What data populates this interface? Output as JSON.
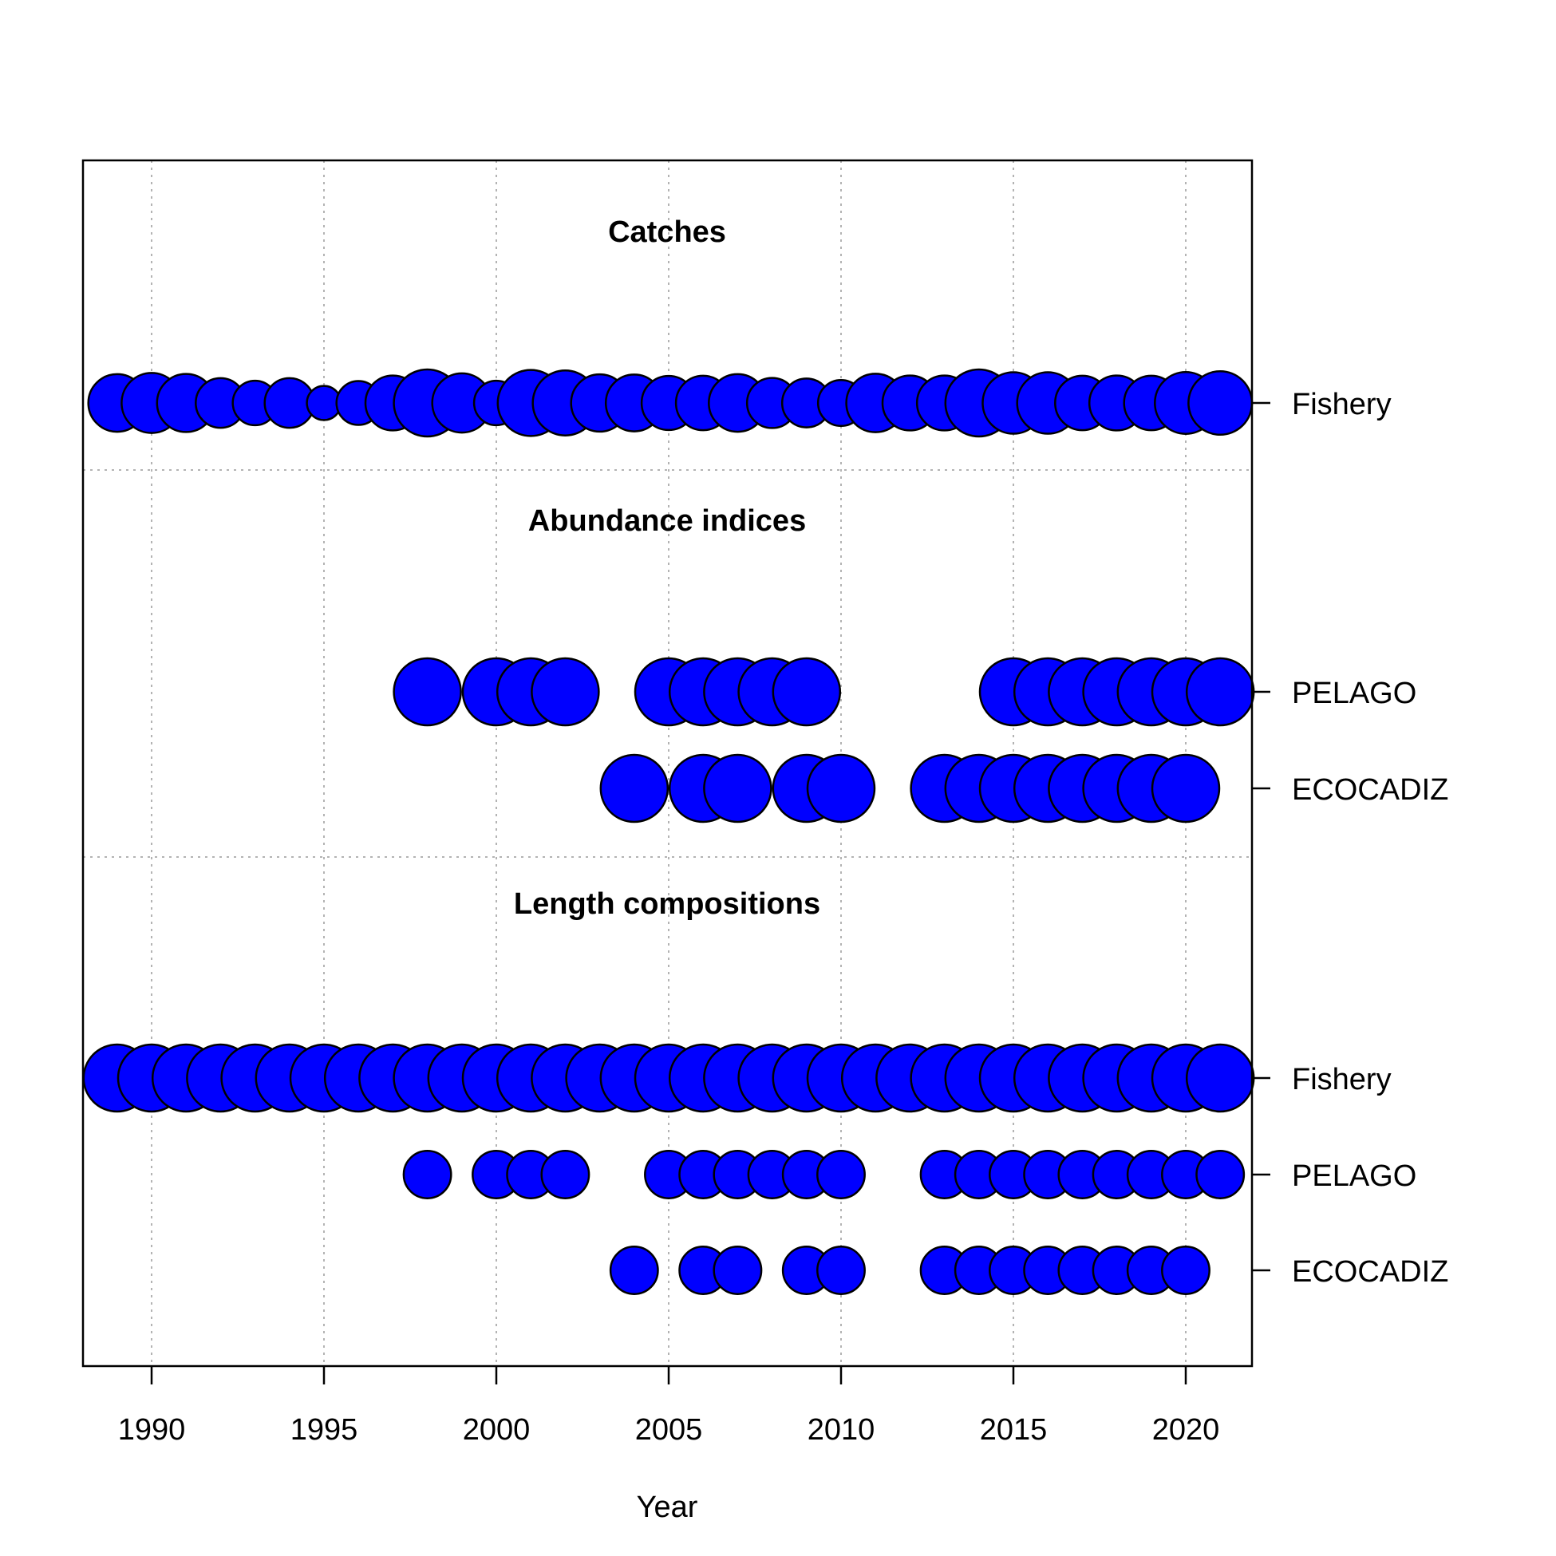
{
  "chart_data": {
    "type": "scatter",
    "xlabel": "Year",
    "xlim": [
      1988,
      2022
    ],
    "x_ticks": [
      1990,
      1995,
      2000,
      2005,
      2010,
      2015,
      2020
    ],
    "grid": true,
    "marker_color": "#0000ff",
    "marker_edge_color": "#000000",
    "panels": [
      {
        "title": "Catches",
        "rows": [
          {
            "label": "Fishery",
            "points": [
              {
                "year": 1989,
                "size": 0.74
              },
              {
                "year": 1990,
                "size": 0.8
              },
              {
                "year": 1991,
                "size": 0.75
              },
              {
                "year": 1992,
                "size": 0.55
              },
              {
                "year": 1993,
                "size": 0.44
              },
              {
                "year": 1994,
                "size": 0.55
              },
              {
                "year": 1995,
                "size": 0.26
              },
              {
                "year": 1996,
                "size": 0.43
              },
              {
                "year": 1997,
                "size": 0.67
              },
              {
                "year": 1998,
                "size": 1.0
              },
              {
                "year": 1999,
                "size": 0.78
              },
              {
                "year": 2000,
                "size": 0.44
              },
              {
                "year": 2001,
                "size": 0.97
              },
              {
                "year": 2002,
                "size": 0.94
              },
              {
                "year": 2003,
                "size": 0.73
              },
              {
                "year": 2004,
                "size": 0.72
              },
              {
                "year": 2005,
                "size": 0.65
              },
              {
                "year": 2006,
                "size": 0.66
              },
              {
                "year": 2007,
                "size": 0.74
              },
              {
                "year": 2008,
                "size": 0.56
              },
              {
                "year": 2009,
                "size": 0.53
              },
              {
                "year": 2010,
                "size": 0.47
              },
              {
                "year": 2011,
                "size": 0.76
              },
              {
                "year": 2012,
                "size": 0.67
              },
              {
                "year": 2013,
                "size": 0.67
              },
              {
                "year": 2014,
                "size": 1.0
              },
              {
                "year": 2015,
                "size": 0.84
              },
              {
                "year": 2016,
                "size": 0.84
              },
              {
                "year": 2017,
                "size": 0.66
              },
              {
                "year": 2018,
                "size": 0.67
              },
              {
                "year": 2019,
                "size": 0.66
              },
              {
                "year": 2020,
                "size": 0.85
              },
              {
                "year": 2021,
                "size": 0.9
              }
            ]
          }
        ]
      },
      {
        "title": "Abundance indices",
        "rows": [
          {
            "label": "PELAGO",
            "points": [
              {
                "year": 1998,
                "size": 1.0
              },
              {
                "year": 2000,
                "size": 1.0
              },
              {
                "year": 2001,
                "size": 1.0
              },
              {
                "year": 2002,
                "size": 1.0
              },
              {
                "year": 2005,
                "size": 1.0
              },
              {
                "year": 2006,
                "size": 1.0
              },
              {
                "year": 2007,
                "size": 1.0
              },
              {
                "year": 2008,
                "size": 1.0
              },
              {
                "year": 2009,
                "size": 1.0
              },
              {
                "year": 2015,
                "size": 1.0
              },
              {
                "year": 2016,
                "size": 1.0
              },
              {
                "year": 2017,
                "size": 1.0
              },
              {
                "year": 2018,
                "size": 1.0
              },
              {
                "year": 2019,
                "size": 1.0
              },
              {
                "year": 2020,
                "size": 1.0
              },
              {
                "year": 2021,
                "size": 1.0
              }
            ]
          },
          {
            "label": "ECOCADIZ",
            "points": [
              {
                "year": 2004,
                "size": 1.0
              },
              {
                "year": 2006,
                "size": 1.0
              },
              {
                "year": 2007,
                "size": 1.0
              },
              {
                "year": 2009,
                "size": 1.0
              },
              {
                "year": 2010,
                "size": 1.0
              },
              {
                "year": 2013,
                "size": 1.0
              },
              {
                "year": 2014,
                "size": 1.0
              },
              {
                "year": 2015,
                "size": 1.0
              },
              {
                "year": 2016,
                "size": 1.0
              },
              {
                "year": 2017,
                "size": 1.0
              },
              {
                "year": 2018,
                "size": 1.0
              },
              {
                "year": 2019,
                "size": 1.0
              },
              {
                "year": 2020,
                "size": 1.0
              }
            ]
          }
        ]
      },
      {
        "title": "Length compositions",
        "rows": [
          {
            "label": "Fishery",
            "points": [
              {
                "year": 1989,
                "size": 1.0
              },
              {
                "year": 1990,
                "size": 1.0
              },
              {
                "year": 1991,
                "size": 1.0
              },
              {
                "year": 1992,
                "size": 1.0
              },
              {
                "year": 1993,
                "size": 1.0
              },
              {
                "year": 1994,
                "size": 1.0
              },
              {
                "year": 1995,
                "size": 1.0
              },
              {
                "year": 1996,
                "size": 1.0
              },
              {
                "year": 1997,
                "size": 1.0
              },
              {
                "year": 1998,
                "size": 1.0
              },
              {
                "year": 1999,
                "size": 1.0
              },
              {
                "year": 2000,
                "size": 1.0
              },
              {
                "year": 2001,
                "size": 1.0
              },
              {
                "year": 2002,
                "size": 1.0
              },
              {
                "year": 2003,
                "size": 1.0
              },
              {
                "year": 2004,
                "size": 1.0
              },
              {
                "year": 2005,
                "size": 1.0
              },
              {
                "year": 2006,
                "size": 1.0
              },
              {
                "year": 2007,
                "size": 1.0
              },
              {
                "year": 2008,
                "size": 1.0
              },
              {
                "year": 2009,
                "size": 1.0
              },
              {
                "year": 2010,
                "size": 1.0
              },
              {
                "year": 2011,
                "size": 1.0
              },
              {
                "year": 2012,
                "size": 1.0
              },
              {
                "year": 2013,
                "size": 1.0
              },
              {
                "year": 2014,
                "size": 1.0
              },
              {
                "year": 2015,
                "size": 1.0
              },
              {
                "year": 2016,
                "size": 1.0
              },
              {
                "year": 2017,
                "size": 1.0
              },
              {
                "year": 2018,
                "size": 1.0
              },
              {
                "year": 2019,
                "size": 1.0
              },
              {
                "year": 2020,
                "size": 1.0
              },
              {
                "year": 2021,
                "size": 1.0
              }
            ]
          },
          {
            "label": "PELAGO",
            "points": [
              {
                "year": 1998,
                "size": 0.5
              },
              {
                "year": 2000,
                "size": 0.5
              },
              {
                "year": 2001,
                "size": 0.5
              },
              {
                "year": 2002,
                "size": 0.5
              },
              {
                "year": 2005,
                "size": 0.5
              },
              {
                "year": 2006,
                "size": 0.5
              },
              {
                "year": 2007,
                "size": 0.5
              },
              {
                "year": 2008,
                "size": 0.5
              },
              {
                "year": 2009,
                "size": 0.5
              },
              {
                "year": 2010,
                "size": 0.5
              },
              {
                "year": 2013,
                "size": 0.5
              },
              {
                "year": 2014,
                "size": 0.5
              },
              {
                "year": 2015,
                "size": 0.5
              },
              {
                "year": 2016,
                "size": 0.5
              },
              {
                "year": 2017,
                "size": 0.5
              },
              {
                "year": 2018,
                "size": 0.5
              },
              {
                "year": 2019,
                "size": 0.5
              },
              {
                "year": 2020,
                "size": 0.5
              },
              {
                "year": 2021,
                "size": 0.5
              }
            ]
          },
          {
            "label": "ECOCADIZ",
            "points": [
              {
                "year": 2004,
                "size": 0.5
              },
              {
                "year": 2006,
                "size": 0.5
              },
              {
                "year": 2007,
                "size": 0.5
              },
              {
                "year": 2009,
                "size": 0.5
              },
              {
                "year": 2010,
                "size": 0.5
              },
              {
                "year": 2013,
                "size": 0.5
              },
              {
                "year": 2014,
                "size": 0.5
              },
              {
                "year": 2015,
                "size": 0.5
              },
              {
                "year": 2016,
                "size": 0.5
              },
              {
                "year": 2017,
                "size": 0.5
              },
              {
                "year": 2018,
                "size": 0.5
              },
              {
                "year": 2019,
                "size": 0.5
              },
              {
                "year": 2020,
                "size": 0.5
              }
            ]
          }
        ]
      }
    ]
  }
}
